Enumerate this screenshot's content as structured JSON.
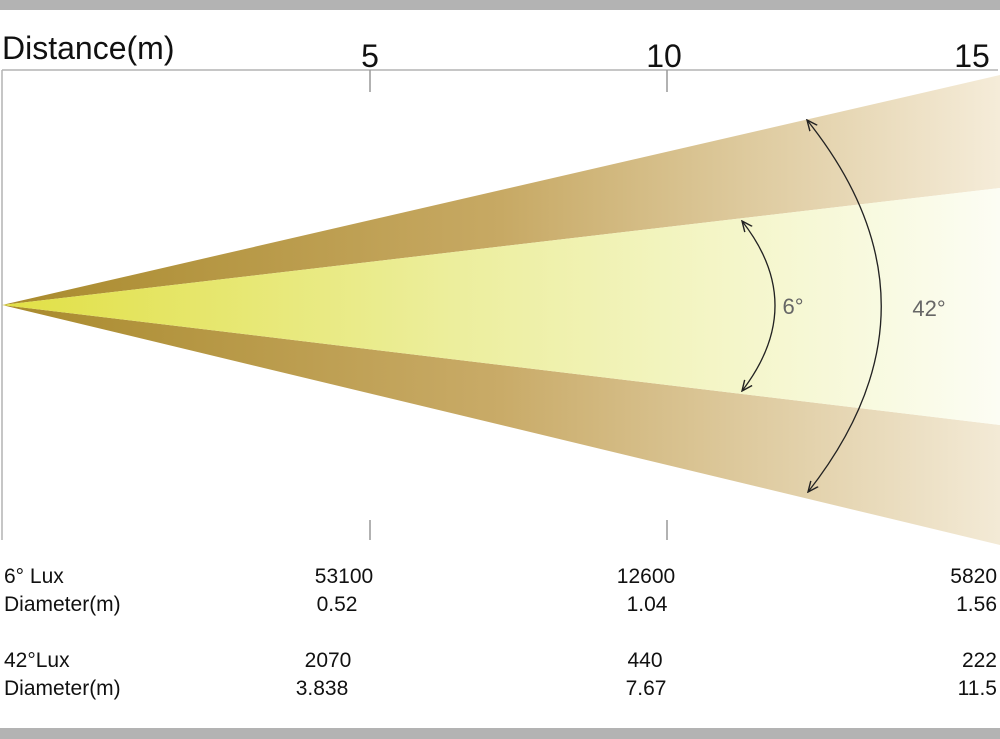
{
  "axis": {
    "title": "Distance(m)",
    "ticks": [
      {
        "value": 5,
        "label": "5"
      },
      {
        "value": 10,
        "label": "10"
      },
      {
        "value": 15,
        "label": "15"
      }
    ]
  },
  "beam_angles": {
    "narrow": "6°",
    "wide": "42°"
  },
  "colors": {
    "outer_beam": "#b8953f",
    "inner_beam": "#e6e64d",
    "arrow": "#222222",
    "angle_label": "#666666",
    "frame": "#b3b3b3"
  },
  "table": {
    "distances": [
      "5",
      "10",
      "15"
    ],
    "rows": [
      {
        "label": "6° Lux",
        "values": [
          "53100",
          "12600",
          "5820"
        ]
      },
      {
        "label": "Diameter(m)",
        "values": [
          "0.52",
          "1.04",
          "1.56"
        ]
      },
      {
        "label": "42°Lux",
        "values": [
          "2070",
          "440",
          "222"
        ]
      },
      {
        "label": "Diameter(m)",
        "values": [
          "3.838",
          "7.67",
          "11.5"
        ]
      }
    ]
  }
}
